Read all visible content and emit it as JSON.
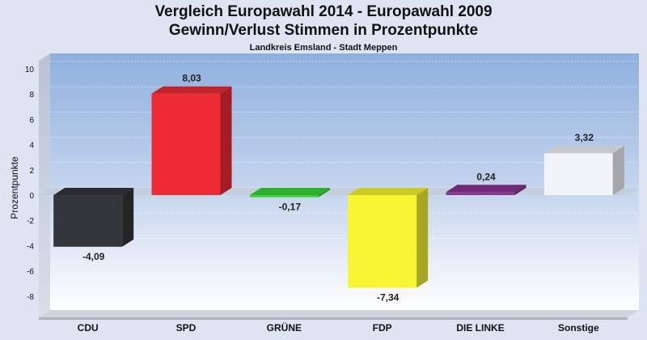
{
  "chart_data": {
    "type": "bar",
    "title": "Vergleich Europawahl 2014 - Europawahl 2009",
    "subtitle": "Gewinn/Verlust Stimmen in Prozentpunkte",
    "caption": "Landkreis Emsland - Stadt Meppen",
    "ylabel": "Prozentpunkte",
    "ylim": [
      -9,
      10
    ],
    "yticks": [
      10,
      8,
      6,
      4,
      2,
      0,
      -2,
      -4,
      -6,
      -8
    ],
    "categories": [
      "CDU",
      "SPD",
      "GRÜNE",
      "FDP",
      "DIE LINKE",
      "Sonstige"
    ],
    "values": [
      -4.09,
      8.03,
      -0.17,
      -7.34,
      0.24,
      3.32
    ],
    "labels": [
      "-4,09",
      "8,03",
      "-0,17",
      "-7,34",
      "0,24",
      "3,32"
    ],
    "colors": [
      "#33363a",
      "#ee2b35",
      "#3ad43a",
      "#f6f632",
      "#8a3590",
      "#f3f4f9"
    ],
    "grid": true,
    "legend": "none"
  }
}
